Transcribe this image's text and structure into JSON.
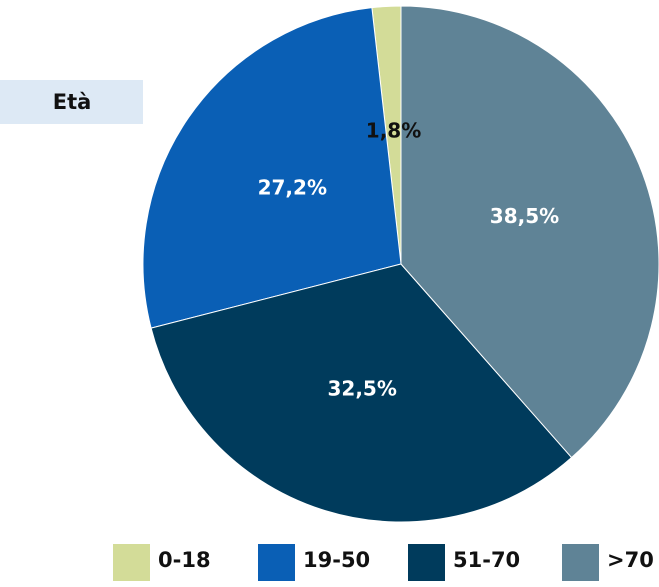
{
  "chart_data": {
    "type": "pie",
    "title": "Età",
    "categories": [
      "0-18",
      "19-50",
      "51-70",
      ">70"
    ],
    "values": [
      1.8,
      27.2,
      32.5,
      38.5
    ],
    "value_labels": [
      "1,8%",
      "27,2%",
      "32,5%",
      "38,5%"
    ],
    "colors": [
      "#d3dc98",
      "#0a5fb5",
      "#003b5c",
      "#5f8396"
    ]
  }
}
